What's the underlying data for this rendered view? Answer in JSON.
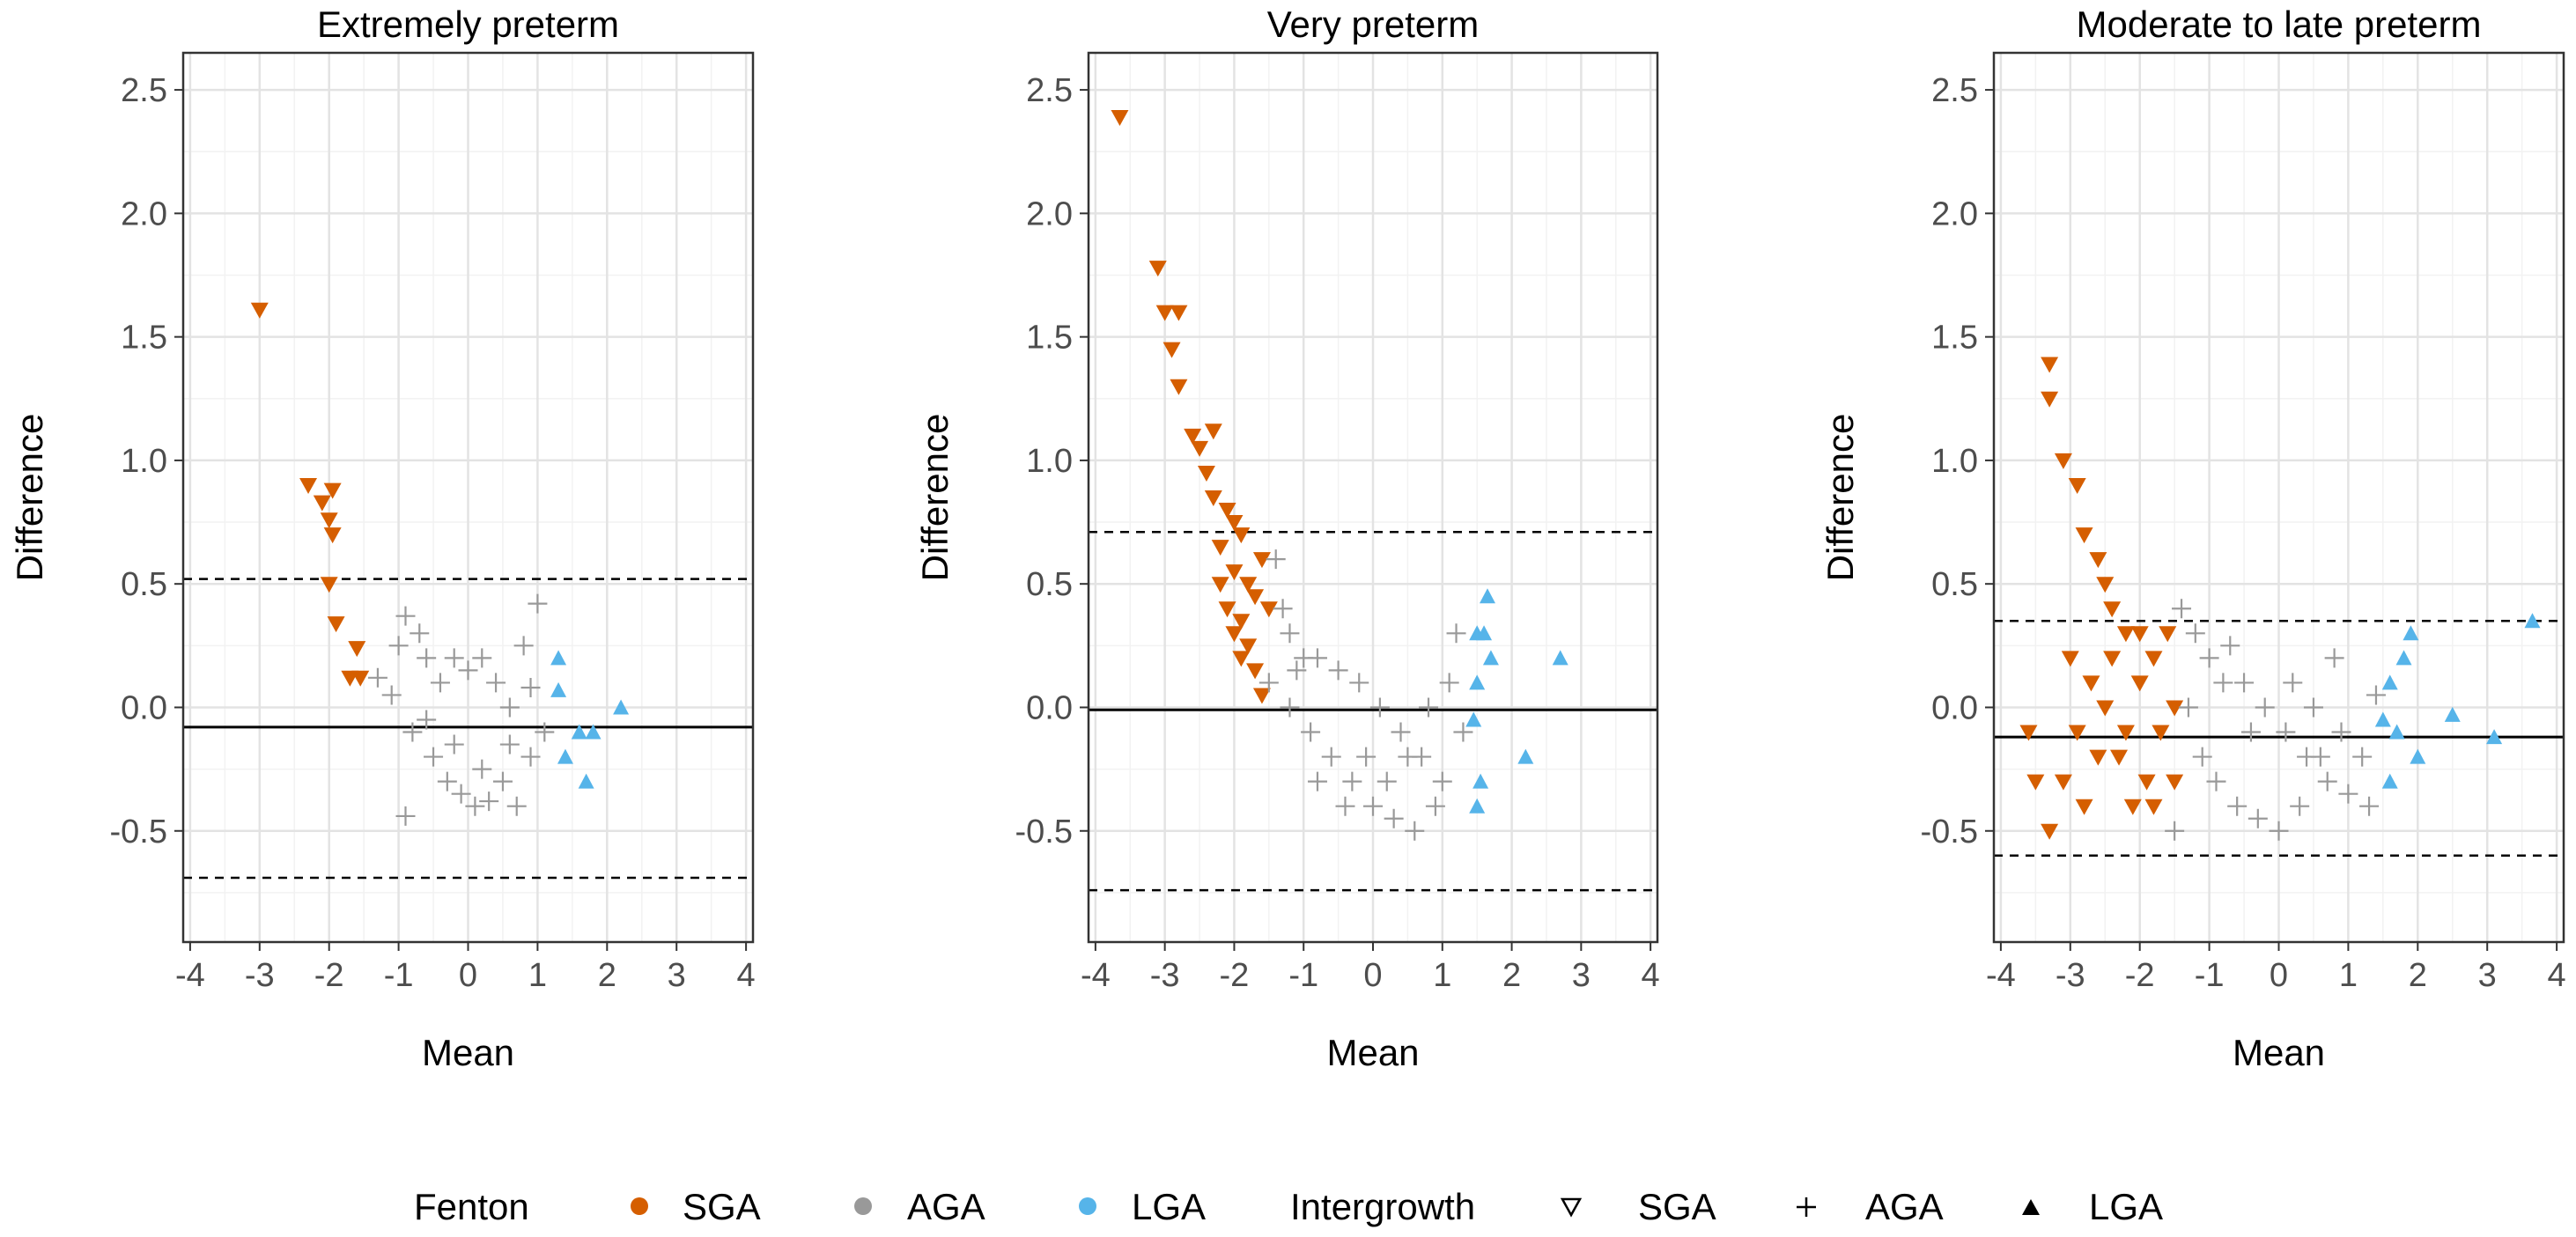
{
  "chart_data": [
    {
      "type": "scatter",
      "title": "Extremely preterm",
      "xlabel": "Mean",
      "ylabel": "Difference",
      "xlim": [
        -4.1,
        4.1
      ],
      "ylim": [
        -0.95,
        2.65
      ],
      "xticks": [
        "-4",
        "-3",
        "-2",
        "-1",
        "0",
        "1",
        "2",
        "3",
        "4"
      ],
      "yticks": [
        "-0.5",
        "0.0",
        "0.5",
        "1.0",
        "1.5",
        "2.0",
        "2.5"
      ],
      "grid": true,
      "mean_line": -0.08,
      "limits_of_agreement": [
        0.52,
        -0.69
      ],
      "series": [
        {
          "name": "SGA",
          "marker": "triangle-down",
          "color": "#D55E00",
          "points": [
            [
              -3.0,
              1.61
            ],
            [
              -2.3,
              0.9
            ],
            [
              -2.1,
              0.83
            ],
            [
              -1.95,
              0.88
            ],
            [
              -2.0,
              0.76
            ],
            [
              -1.95,
              0.7
            ],
            [
              -2.0,
              0.5
            ],
            [
              -1.9,
              0.34
            ],
            [
              -1.6,
              0.24
            ],
            [
              -1.7,
              0.12
            ],
            [
              -1.55,
              0.12
            ]
          ]
        },
        {
          "name": "AGA",
          "marker": "cross",
          "color": "#999999",
          "points": [
            [
              -1.3,
              0.12
            ],
            [
              -1.0,
              0.25
            ],
            [
              -0.9,
              0.37
            ],
            [
              -0.7,
              0.3
            ],
            [
              -0.6,
              0.2
            ],
            [
              -0.4,
              0.1
            ],
            [
              -0.2,
              0.2
            ],
            [
              0.0,
              0.15
            ],
            [
              0.2,
              0.2
            ],
            [
              0.4,
              0.1
            ],
            [
              0.6,
              0.0
            ],
            [
              0.8,
              0.25
            ],
            [
              1.0,
              0.42
            ],
            [
              -1.1,
              0.05
            ],
            [
              -0.8,
              -0.1
            ],
            [
              -0.5,
              -0.2
            ],
            [
              -0.3,
              -0.3
            ],
            [
              -0.1,
              -0.35
            ],
            [
              0.1,
              -0.4
            ],
            [
              0.3,
              -0.38
            ],
            [
              0.5,
              -0.3
            ],
            [
              0.7,
              -0.4
            ],
            [
              0.9,
              -0.2
            ],
            [
              1.1,
              -0.1
            ],
            [
              -0.9,
              -0.44
            ],
            [
              -0.6,
              -0.05
            ],
            [
              -0.2,
              -0.15
            ],
            [
              0.2,
              -0.25
            ],
            [
              0.6,
              -0.15
            ],
            [
              0.9,
              0.08
            ]
          ]
        },
        {
          "name": "LGA",
          "marker": "triangle-up",
          "color": "#56B4E9",
          "points": [
            [
              1.3,
              0.07
            ],
            [
              1.4,
              -0.2
            ],
            [
              1.6,
              -0.1
            ],
            [
              1.7,
              -0.3
            ],
            [
              1.8,
              -0.1
            ],
            [
              2.2,
              0.0
            ],
            [
              1.3,
              0.2
            ]
          ]
        }
      ]
    },
    {
      "type": "scatter",
      "title": "Very preterm",
      "xlabel": "Mean",
      "ylabel": "Difference",
      "xlim": [
        -4.1,
        4.1
      ],
      "ylim": [
        -0.95,
        2.65
      ],
      "xticks": [
        "-4",
        "-3",
        "-2",
        "-1",
        "0",
        "1",
        "2",
        "3",
        "4"
      ],
      "yticks": [
        "-0.5",
        "0.0",
        "0.5",
        "1.0",
        "1.5",
        "2.0",
        "2.5"
      ],
      "grid": true,
      "mean_line": -0.01,
      "limits_of_agreement": [
        0.71,
        -0.74
      ],
      "series": [
        {
          "name": "SGA",
          "marker": "triangle-down",
          "color": "#D55E00",
          "points": [
            [
              -3.65,
              2.39
            ],
            [
              -3.1,
              1.78
            ],
            [
              -3.0,
              1.6
            ],
            [
              -2.8,
              1.6
            ],
            [
              -2.9,
              1.45
            ],
            [
              -2.8,
              1.3
            ],
            [
              -2.6,
              1.1
            ],
            [
              -2.5,
              1.05
            ],
            [
              -2.3,
              1.12
            ],
            [
              -2.4,
              0.95
            ],
            [
              -2.3,
              0.85
            ],
            [
              -2.1,
              0.8
            ],
            [
              -2.0,
              0.75
            ],
            [
              -1.9,
              0.7
            ],
            [
              -2.2,
              0.65
            ],
            [
              -2.0,
              0.55
            ],
            [
              -1.8,
              0.5
            ],
            [
              -1.7,
              0.45
            ],
            [
              -2.1,
              0.4
            ],
            [
              -1.9,
              0.35
            ],
            [
              -1.8,
              0.25
            ],
            [
              -1.7,
              0.15
            ],
            [
              -1.6,
              0.05
            ],
            [
              -1.9,
              0.2
            ],
            [
              -2.0,
              0.3
            ],
            [
              -1.6,
              0.6
            ],
            [
              -1.5,
              0.4
            ],
            [
              -2.2,
              0.5
            ]
          ]
        },
        {
          "name": "AGA",
          "marker": "cross",
          "color": "#999999",
          "points": [
            [
              -1.4,
              0.6
            ],
            [
              -1.3,
              0.4
            ],
            [
              -1.2,
              0.3
            ],
            [
              -1.0,
              0.2
            ],
            [
              -0.8,
              0.2
            ],
            [
              -0.5,
              0.15
            ],
            [
              -0.2,
              0.1
            ],
            [
              0.1,
              0.0
            ],
            [
              0.4,
              -0.1
            ],
            [
              0.7,
              -0.2
            ],
            [
              1.0,
              -0.3
            ],
            [
              -1.5,
              0.1
            ],
            [
              -1.2,
              0.0
            ],
            [
              -0.9,
              -0.1
            ],
            [
              -0.6,
              -0.2
            ],
            [
              -0.3,
              -0.3
            ],
            [
              0.0,
              -0.4
            ],
            [
              0.3,
              -0.45
            ],
            [
              0.6,
              -0.5
            ],
            [
              -0.8,
              -0.3
            ],
            [
              -0.4,
              -0.4
            ],
            [
              0.2,
              -0.3
            ],
            [
              0.5,
              -0.2
            ],
            [
              0.8,
              0.0
            ],
            [
              1.1,
              0.1
            ],
            [
              -1.1,
              0.15
            ],
            [
              -0.1,
              -0.2
            ],
            [
              0.9,
              -0.4
            ],
            [
              1.2,
              0.3
            ],
            [
              1.3,
              -0.1
            ]
          ]
        },
        {
          "name": "LGA",
          "marker": "triangle-up",
          "color": "#56B4E9",
          "points": [
            [
              1.5,
              0.3
            ],
            [
              1.65,
              0.45
            ],
            [
              1.6,
              0.3
            ],
            [
              1.7,
              0.2
            ],
            [
              1.5,
              0.1
            ],
            [
              1.45,
              -0.05
            ],
            [
              1.55,
              -0.3
            ],
            [
              1.5,
              -0.4
            ],
            [
              2.2,
              -0.2
            ],
            [
              2.7,
              0.2
            ]
          ]
        }
      ]
    },
    {
      "type": "scatter",
      "title": "Moderate to late preterm",
      "xlabel": "Mean",
      "ylabel": "Difference",
      "xlim": [
        -4.1,
        4.1
      ],
      "ylim": [
        -0.95,
        2.65
      ],
      "xticks": [
        "-4",
        "-3",
        "-2",
        "-1",
        "0",
        "1",
        "2",
        "3",
        "4"
      ],
      "yticks": [
        "-0.5",
        "0.0",
        "0.5",
        "1.0",
        "1.5",
        "2.0",
        "2.5"
      ],
      "grid": true,
      "mean_line": -0.12,
      "limits_of_agreement": [
        0.35,
        -0.6
      ],
      "series": [
        {
          "name": "SGA",
          "marker": "triangle-down",
          "color": "#D55E00",
          "points": [
            [
              -3.3,
              1.39
            ],
            [
              -3.3,
              1.25
            ],
            [
              -3.1,
              1.0
            ],
            [
              -2.9,
              0.9
            ],
            [
              -2.8,
              0.7
            ],
            [
              -2.6,
              0.6
            ],
            [
              -2.5,
              0.5
            ],
            [
              -2.4,
              0.4
            ],
            [
              -2.2,
              0.3
            ],
            [
              -2.0,
              0.3
            ],
            [
              -1.8,
              0.2
            ],
            [
              -3.6,
              -0.1
            ],
            [
              -3.5,
              -0.3
            ],
            [
              -3.3,
              -0.5
            ],
            [
              -3.1,
              -0.3
            ],
            [
              -2.9,
              -0.1
            ],
            [
              -2.7,
              0.1
            ],
            [
              -2.5,
              0.0
            ],
            [
              -2.3,
              -0.2
            ],
            [
              -2.1,
              -0.4
            ],
            [
              -1.9,
              -0.3
            ],
            [
              -1.7,
              -0.1
            ],
            [
              -1.5,
              0.0
            ],
            [
              -2.8,
              -0.4
            ],
            [
              -2.6,
              -0.2
            ],
            [
              -2.4,
              0.2
            ],
            [
              -2.2,
              -0.1
            ],
            [
              -2.0,
              0.1
            ],
            [
              -1.8,
              -0.4
            ],
            [
              -1.6,
              0.3
            ],
            [
              -3.0,
              0.2
            ],
            [
              -1.5,
              -0.3
            ]
          ]
        },
        {
          "name": "AGA",
          "marker": "cross",
          "color": "#999999",
          "points": [
            [
              -1.4,
              0.4
            ],
            [
              -1.2,
              0.3
            ],
            [
              -1.0,
              0.2
            ],
            [
              -0.8,
              0.1
            ],
            [
              -0.5,
              0.1
            ],
            [
              -0.2,
              0.0
            ],
            [
              0.1,
              -0.1
            ],
            [
              0.4,
              -0.2
            ],
            [
              0.7,
              -0.3
            ],
            [
              1.0,
              -0.35
            ],
            [
              -1.3,
              0.0
            ],
            [
              -1.1,
              -0.2
            ],
            [
              -0.9,
              -0.3
            ],
            [
              -0.6,
              -0.4
            ],
            [
              -0.3,
              -0.45
            ],
            [
              0.0,
              -0.5
            ],
            [
              0.3,
              -0.4
            ],
            [
              0.6,
              -0.2
            ],
            [
              0.9,
              -0.1
            ],
            [
              1.2,
              -0.2
            ],
            [
              -0.7,
              0.25
            ],
            [
              -0.4,
              -0.1
            ],
            [
              0.2,
              0.1
            ],
            [
              0.5,
              0.0
            ],
            [
              1.3,
              -0.4
            ],
            [
              1.4,
              0.05
            ],
            [
              -1.5,
              -0.5
            ],
            [
              0.8,
              0.2
            ]
          ]
        },
        {
          "name": "LGA",
          "marker": "triangle-up",
          "color": "#56B4E9",
          "points": [
            [
              1.6,
              0.1
            ],
            [
              1.8,
              0.2
            ],
            [
              1.9,
              0.3
            ],
            [
              1.7,
              -0.1
            ],
            [
              1.6,
              -0.3
            ],
            [
              2.0,
              -0.2
            ],
            [
              2.5,
              -0.03
            ],
            [
              3.1,
              -0.12
            ],
            [
              3.65,
              0.35
            ],
            [
              1.5,
              -0.05
            ]
          ]
        }
      ]
    }
  ],
  "legend": {
    "fenton_title": "Fenton",
    "fenton_items": [
      {
        "label": "SGA",
        "color": "#D55E00"
      },
      {
        "label": "AGA",
        "color": "#999999"
      },
      {
        "label": "LGA",
        "color": "#56B4E9"
      }
    ],
    "intergrowth_title": "Intergrowth",
    "intergrowth_items": [
      {
        "label": "SGA",
        "marker": "triangle-down-open"
      },
      {
        "label": "AGA",
        "marker": "cross"
      },
      {
        "label": "LGA",
        "marker": "triangle-up"
      }
    ]
  }
}
